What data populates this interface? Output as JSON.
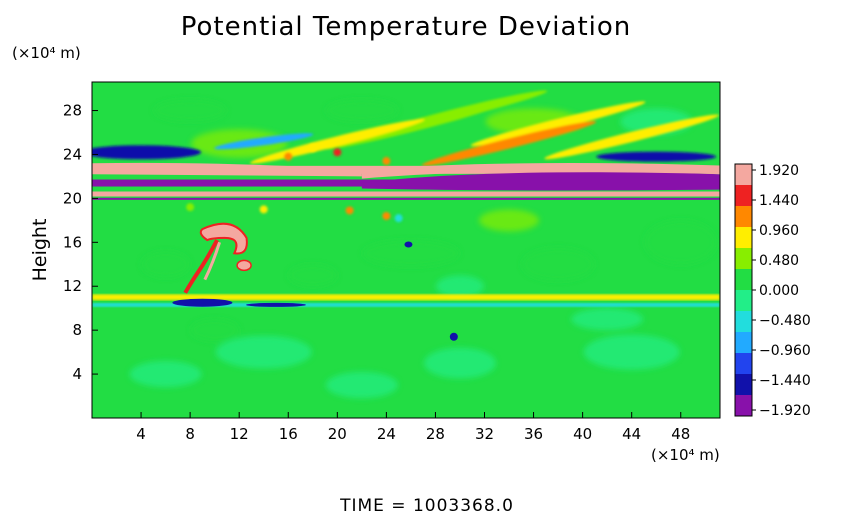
{
  "chart_data": {
    "type": "heatmap",
    "title": "Potential Temperature Deviation",
    "xlabel": "",
    "x_unit": "(×10⁴ m)",
    "ylabel": "Height",
    "y_unit": "(×10⁴ m)",
    "xlim": [
      0,
      51.2
    ],
    "ylim": [
      0,
      30.6
    ],
    "x_ticks": [
      4,
      8,
      12,
      16,
      20,
      24,
      28,
      32,
      36,
      40,
      44,
      48
    ],
    "y_ticks": [
      4,
      8,
      12,
      16,
      20,
      24,
      28
    ],
    "colorbar": {
      "min": -1.92,
      "max": 1.92,
      "labels": [
        "1.920",
        "1.440",
        "0.960",
        "0.480",
        "0.000",
        "−0.480",
        "−0.960",
        "−1.440",
        "−1.920"
      ],
      "colors": [
        "#f4a8a0",
        "#ee2222",
        "#ff8800",
        "#ffee00",
        "#88ee00",
        "#22dd44",
        "#22ee88",
        "#22dddd",
        "#22aaff",
        "#2244ee",
        "#1111aa",
        "#8811aa"
      ]
    },
    "bands": [
      {
        "name": "upper-negative",
        "y": 24.2,
        "value": -1.5
      },
      {
        "name": "upper-positive",
        "y": 22.6,
        "value": 1.9
      },
      {
        "name": "tropopause-negative",
        "y": 21.4,
        "value": -1.9
      },
      {
        "name": "tropopause-positive",
        "y": 20.4,
        "value": 1.9
      },
      {
        "name": "low-level-positive",
        "y": 11.0,
        "value": 0.6
      },
      {
        "name": "low-level-negative",
        "y": 10.3,
        "value": -1.3
      }
    ],
    "thermal_plume": {
      "x": 10.5,
      "y": 16.5,
      "value": 1.9
    }
  },
  "footer": {
    "time_text": "TIME = 1003368.0"
  }
}
